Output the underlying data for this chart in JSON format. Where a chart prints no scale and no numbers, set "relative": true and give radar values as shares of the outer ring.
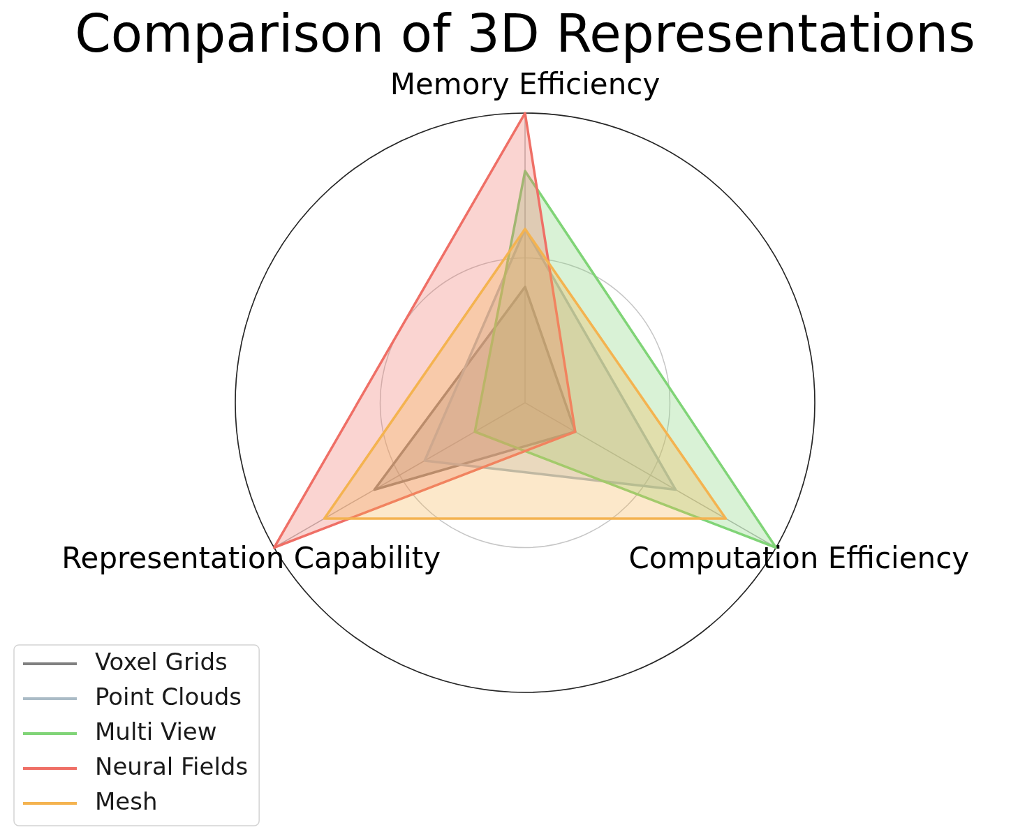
{
  "chart_data": {
    "type": "radar",
    "title": "Comparison of 3D Representations",
    "categories": [
      "Memory Efficiency",
      "Computation Efficiency",
      "Representation Capability"
    ],
    "relative": true,
    "grid": true,
    "legend": "bottom left",
    "series": [
      {
        "name": "Voxel Grids",
        "color": "#808080",
        "values": [
          0.4,
          0.2,
          0.6
        ]
      },
      {
        "name": "Point Clouds",
        "color": "#aabbc6",
        "values": [
          0.6,
          0.6,
          0.4
        ]
      },
      {
        "name": "Multi View",
        "color": "#80d477",
        "values": [
          0.8,
          1,
          0.2
        ]
      },
      {
        "name": "Neural Fields",
        "color": "#ef6f66",
        "values": [
          1,
          0.2,
          1
        ]
      },
      {
        "name": "Mesh",
        "color": "#f4b350",
        "values": [
          0.6,
          0.8,
          0.8
        ]
      }
    ]
  }
}
